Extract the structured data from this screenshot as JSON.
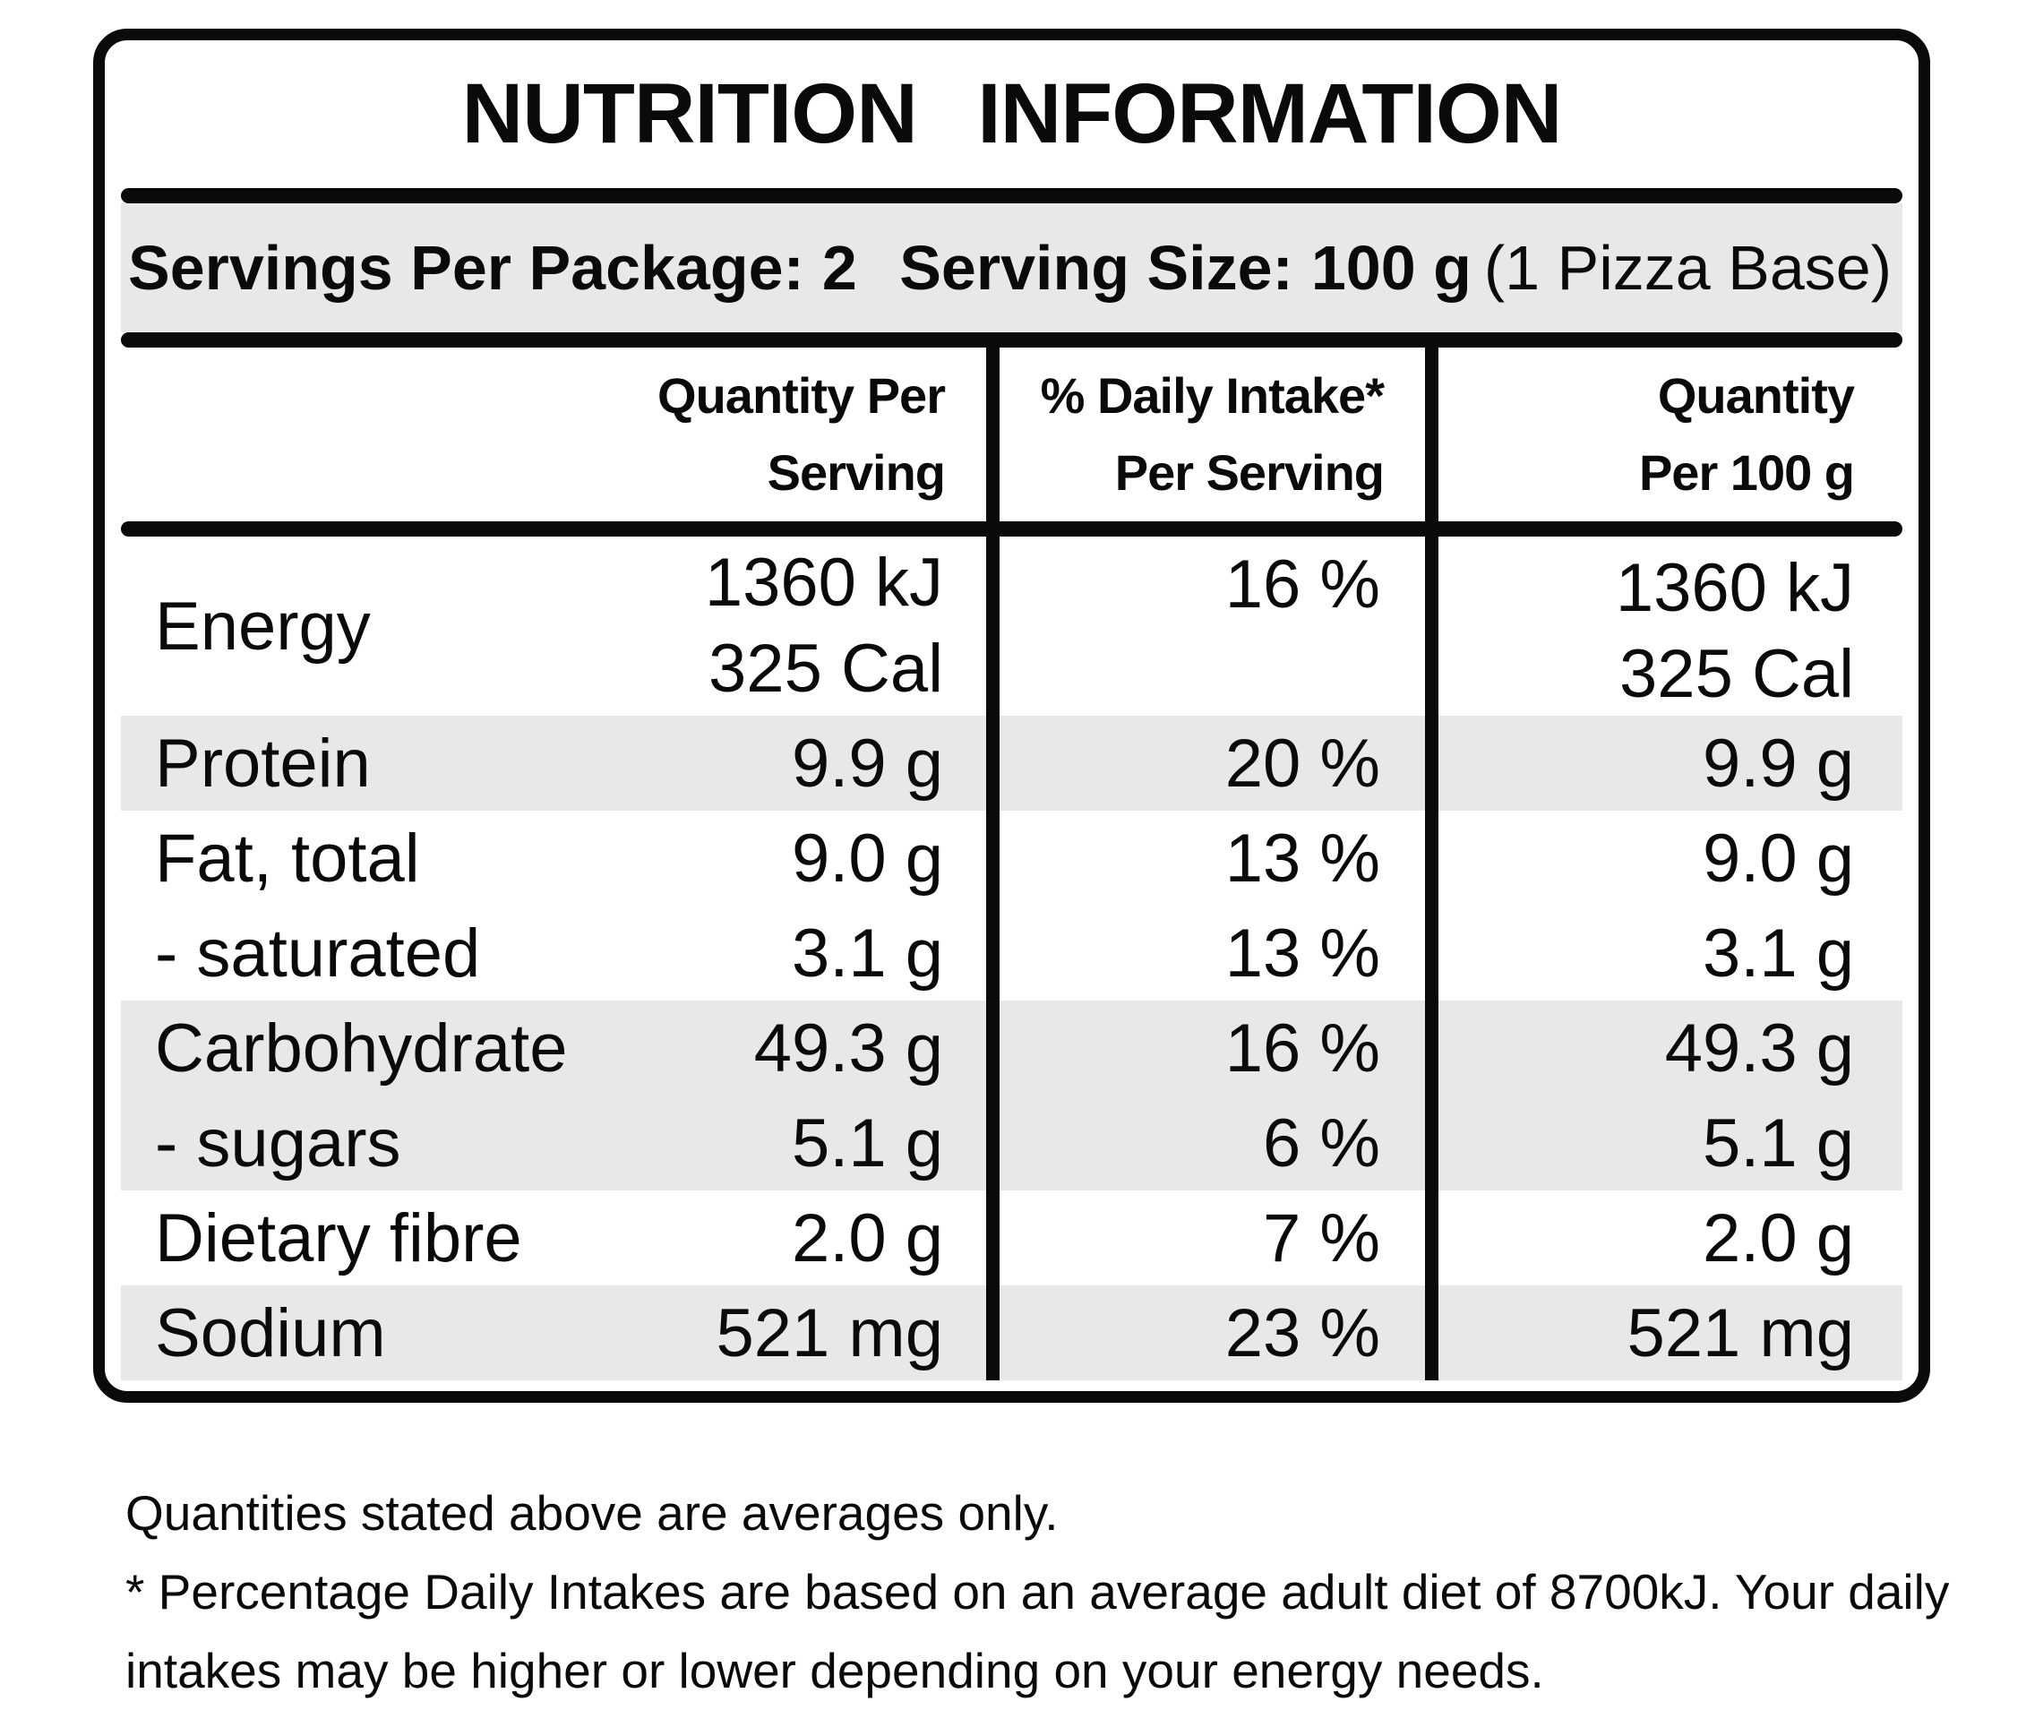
{
  "title": "NUTRITION INFORMATION",
  "servings": {
    "package_label": "Servings Per Package:",
    "package_value": "2",
    "size_label": "Serving Size:",
    "size_value": "100 g",
    "size_note": "(1 Pizza Base)"
  },
  "columns": {
    "per_serving_line1": "Quantity Per",
    "per_serving_line2": "Serving",
    "daily_intake_line1": "% Daily Intake*",
    "daily_intake_line2": "Per Serving",
    "per_100g_line1": "Quantity",
    "per_100g_line2": "Per 100 g"
  },
  "rows": [
    {
      "nutrient": "Energy",
      "per_serving": "1360 kJ",
      "per_serving_line2": "325 Cal",
      "daily_intake": "16 %",
      "per_100g": "1360 kJ",
      "per_100g_line2": "325 Cal",
      "shaded": false
    },
    {
      "nutrient": "Protein",
      "per_serving": "9.9 g",
      "daily_intake": "20 %",
      "per_100g": "9.9 g",
      "shaded": true
    },
    {
      "nutrient": "Fat, total",
      "per_serving": "9.0 g",
      "daily_intake": "13 %",
      "per_100g": "9.0 g",
      "shaded": false
    },
    {
      "nutrient": "- saturated",
      "per_serving": "3.1 g",
      "daily_intake": "13 %",
      "per_100g": "3.1 g",
      "shaded": false
    },
    {
      "nutrient": "Carbohydrate",
      "per_serving": "49.3 g",
      "daily_intake": "16 %",
      "per_100g": "49.3 g",
      "shaded": true
    },
    {
      "nutrient": "- sugars",
      "per_serving": "5.1 g",
      "daily_intake": "6 %",
      "per_100g": "5.1 g",
      "shaded": true
    },
    {
      "nutrient": "Dietary fibre",
      "per_serving": "2.0 g",
      "daily_intake": "7 %",
      "per_100g": "2.0 g",
      "shaded": false
    },
    {
      "nutrient": "Sodium",
      "per_serving": "521 mg",
      "daily_intake": "23 %",
      "per_100g": "521 mg",
      "shaded": true
    }
  ],
  "footnotes": {
    "line1": "Quantities stated above are averages only.",
    "line2": "* Percentage Daily Intakes are based on an average adult diet of 8700kJ. Your daily",
    "line3": "intakes may be higher or lower depending on your energy needs."
  },
  "colors": {
    "ink": "#0a0a0a",
    "shade": "#e8e8e8",
    "background": "#ffffff"
  }
}
